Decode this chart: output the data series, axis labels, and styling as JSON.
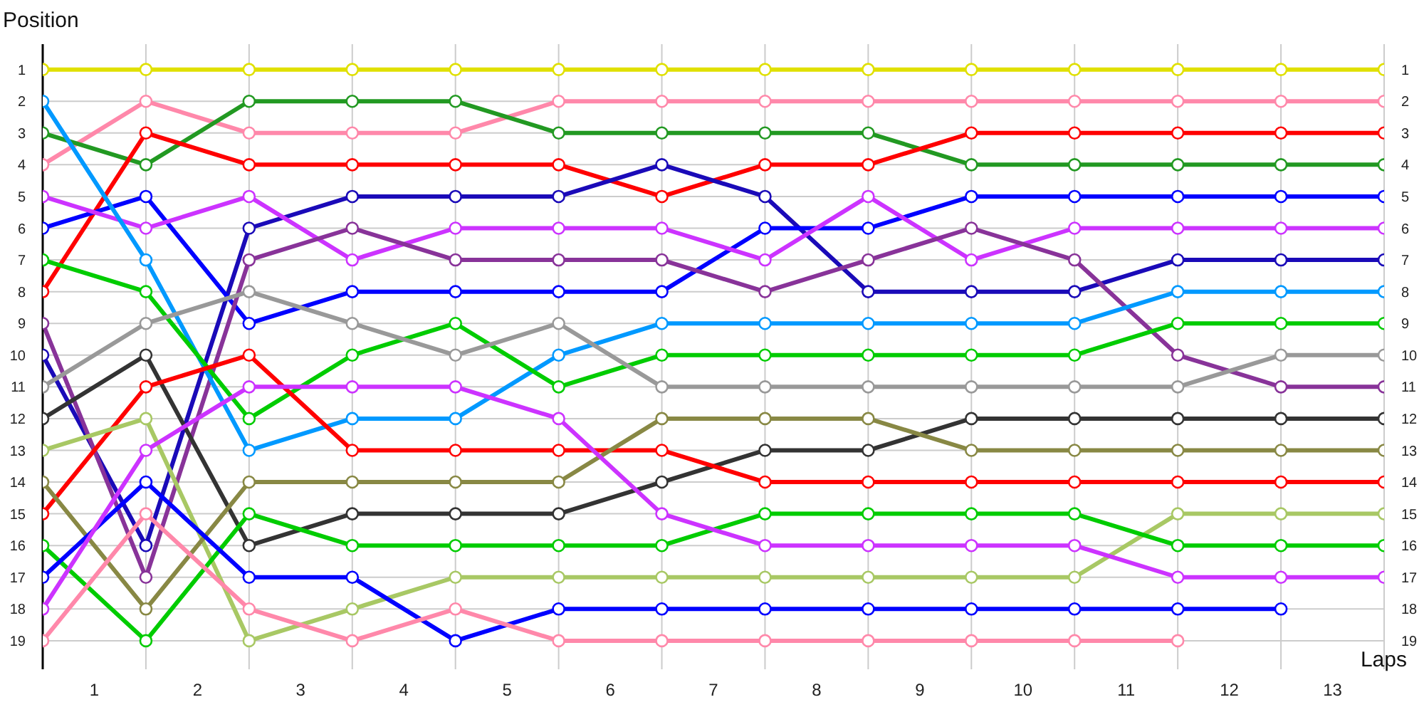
{
  "chart_data": {
    "type": "line",
    "xlabel": "Laps",
    "ylabel": "Position",
    "x": [
      0,
      1,
      2,
      3,
      4,
      5,
      6,
      7,
      8,
      9,
      10,
      11,
      12,
      13
    ],
    "xlim": [
      0,
      13
    ],
    "xticks": [
      {
        "value": 0,
        "label": null
      },
      {
        "value": 0.5,
        "label": "1"
      },
      {
        "value": 1,
        "label": null
      },
      {
        "value": 1.5,
        "label": "2"
      },
      {
        "value": 2,
        "label": null
      },
      {
        "value": 2.5,
        "label": "3"
      },
      {
        "value": 3,
        "label": null
      },
      {
        "value": 3.5,
        "label": "4"
      },
      {
        "value": 4,
        "label": null
      },
      {
        "value": 4.5,
        "label": "5"
      },
      {
        "value": 5,
        "label": null
      },
      {
        "value": 5.5,
        "label": "6"
      },
      {
        "value": 6,
        "label": null
      },
      {
        "value": 6.5,
        "label": "7"
      },
      {
        "value": 7,
        "label": null
      },
      {
        "value": 7.5,
        "label": "8"
      },
      {
        "value": 8,
        "label": null
      },
      {
        "value": 8.5,
        "label": "9"
      },
      {
        "value": 9,
        "label": null
      },
      {
        "value": 9.5,
        "label": "10"
      },
      {
        "value": 10,
        "label": null
      },
      {
        "value": 10.5,
        "label": "11"
      },
      {
        "value": 11,
        "label": null
      },
      {
        "value": 11.5,
        "label": "12"
      },
      {
        "value": 12,
        "label": null
      },
      {
        "value": 12.5,
        "label": "13"
      },
      {
        "value": 13,
        "label": null
      }
    ],
    "ylim": [
      19.9,
      0.2
    ],
    "yticks": [
      1,
      2,
      3,
      4,
      5,
      6,
      7,
      8,
      9,
      10,
      11,
      12,
      13,
      14,
      15,
      16,
      17,
      18,
      19
    ],
    "y2lim": [
      19.9,
      0.2
    ],
    "y2ticks": [
      1,
      2,
      3,
      4,
      5,
      6,
      7,
      8,
      9,
      10,
      11,
      12,
      13,
      14,
      15,
      16,
      17,
      18,
      19
    ],
    "grid": true,
    "legend": false,
    "marker": "circle",
    "line_style": "solid",
    "series": [
      {
        "color": "#e0e000",
        "values": [
          1,
          1,
          1,
          1,
          1,
          1,
          1,
          1,
          1,
          1,
          1,
          1,
          1,
          1
        ]
      },
      {
        "color": "#ff88aa",
        "values": [
          4,
          2,
          3,
          3,
          3,
          2,
          2,
          2,
          2,
          2,
          2,
          2,
          2,
          2
        ]
      },
      {
        "color": "#229922",
        "values": [
          3,
          4,
          2,
          2,
          2,
          3,
          3,
          3,
          3,
          4,
          4,
          4,
          4,
          4
        ]
      },
      {
        "color": "#ff0000",
        "values": [
          8,
          3,
          4,
          4,
          4,
          4,
          5,
          4,
          4,
          3,
          3,
          3,
          3,
          3
        ]
      },
      {
        "color": "#1a0ab8",
        "values": [
          10,
          16,
          6,
          5,
          5,
          5,
          4,
          5,
          8,
          8,
          8,
          7,
          7,
          7
        ]
      },
      {
        "color": "#0000ff",
        "values": [
          6,
          5,
          9,
          8,
          8,
          8,
          8,
          6,
          6,
          5,
          5,
          5,
          5,
          5
        ]
      },
      {
        "color": "#cc33ff",
        "values": [
          5,
          6,
          5,
          7,
          6,
          6,
          6,
          7,
          5,
          7,
          6,
          6,
          6,
          6
        ]
      },
      {
        "color": "#883399",
        "values": [
          9,
          17,
          7,
          6,
          7,
          7,
          7,
          8,
          7,
          6,
          7,
          10,
          11,
          11
        ]
      },
      {
        "color": "#0099ff",
        "values": [
          2,
          7,
          13,
          12,
          12,
          10,
          9,
          9,
          9,
          9,
          9,
          8,
          8,
          8
        ]
      },
      {
        "color": "#00cc00",
        "values": [
          7,
          8,
          12,
          10,
          9,
          11,
          10,
          10,
          10,
          10,
          10,
          9,
          9,
          9
        ]
      },
      {
        "color": "#999999",
        "values": [
          11,
          9,
          8,
          9,
          10,
          9,
          11,
          11,
          11,
          11,
          11,
          11,
          10,
          10
        ]
      },
      {
        "color": "#333333",
        "values": [
          12,
          10,
          16,
          15,
          15,
          15,
          14,
          13,
          13,
          12,
          12,
          12,
          12,
          12
        ]
      },
      {
        "color": "#ff0000",
        "values": [
          15,
          11,
          10,
          13,
          13,
          13,
          13,
          14,
          14,
          14,
          14,
          14,
          14,
          14
        ]
      },
      {
        "color": "#a8c864",
        "values": [
          13,
          12,
          19,
          18,
          17,
          17,
          17,
          17,
          17,
          17,
          17,
          15,
          15,
          15
        ]
      },
      {
        "color": "#888844",
        "values": [
          14,
          18,
          14,
          14,
          14,
          14,
          12,
          12,
          12,
          13,
          13,
          13,
          13,
          13
        ]
      },
      {
        "color": "#00cc00",
        "values": [
          16,
          19,
          15,
          16,
          16,
          16,
          16,
          15,
          15,
          15,
          15,
          16,
          16,
          16
        ]
      },
      {
        "color": "#0000ff",
        "values": [
          17,
          14,
          17,
          17,
          19,
          18,
          18,
          18,
          18,
          18,
          18,
          18,
          18,
          null
        ]
      },
      {
        "color": "#cc33ff",
        "values": [
          18,
          13,
          11,
          11,
          11,
          12,
          15,
          16,
          16,
          16,
          16,
          17,
          17,
          17
        ]
      },
      {
        "color": "#ff88aa",
        "values": [
          19,
          15,
          18,
          19,
          18,
          19,
          19,
          19,
          19,
          19,
          19,
          19,
          null,
          null
        ]
      }
    ]
  }
}
